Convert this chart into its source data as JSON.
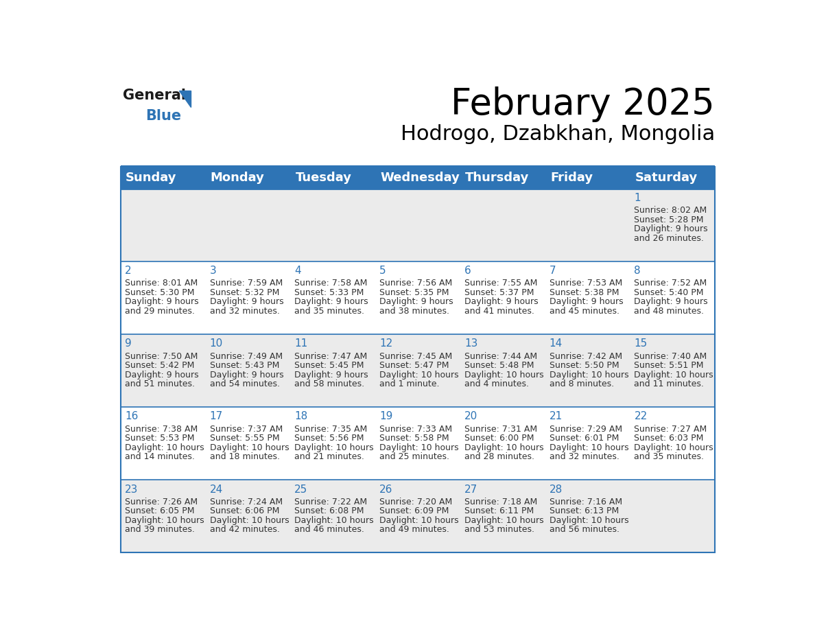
{
  "title": "February 2025",
  "subtitle": "Hodrogo, Dzabkhan, Mongolia",
  "header_color": "#2E74B5",
  "header_text_color": "#FFFFFF",
  "row_bg_gray": "#EBEBEB",
  "row_bg_white": "#FFFFFF",
  "border_color": "#2E74B5",
  "day_number_color": "#2E74B5",
  "info_text_color": "#333333",
  "days_of_week": [
    "Sunday",
    "Monday",
    "Tuesday",
    "Wednesday",
    "Thursday",
    "Friday",
    "Saturday"
  ],
  "title_fontsize": 38,
  "subtitle_fontsize": 22,
  "day_header_fontsize": 13,
  "cell_day_fontsize": 11,
  "cell_info_fontsize": 9,
  "logo_general_color": "#1a1a1a",
  "logo_blue_color": "#2E74B5",
  "logo_triangle_color": "#2E74B5",
  "calendar": [
    [
      {
        "day": "",
        "info": ""
      },
      {
        "day": "",
        "info": ""
      },
      {
        "day": "",
        "info": ""
      },
      {
        "day": "",
        "info": ""
      },
      {
        "day": "",
        "info": ""
      },
      {
        "day": "",
        "info": ""
      },
      {
        "day": "1",
        "info": "Sunrise: 8:02 AM\nSunset: 5:28 PM\nDaylight: 9 hours\nand 26 minutes."
      }
    ],
    [
      {
        "day": "2",
        "info": "Sunrise: 8:01 AM\nSunset: 5:30 PM\nDaylight: 9 hours\nand 29 minutes."
      },
      {
        "day": "3",
        "info": "Sunrise: 7:59 AM\nSunset: 5:32 PM\nDaylight: 9 hours\nand 32 minutes."
      },
      {
        "day": "4",
        "info": "Sunrise: 7:58 AM\nSunset: 5:33 PM\nDaylight: 9 hours\nand 35 minutes."
      },
      {
        "day": "5",
        "info": "Sunrise: 7:56 AM\nSunset: 5:35 PM\nDaylight: 9 hours\nand 38 minutes."
      },
      {
        "day": "6",
        "info": "Sunrise: 7:55 AM\nSunset: 5:37 PM\nDaylight: 9 hours\nand 41 minutes."
      },
      {
        "day": "7",
        "info": "Sunrise: 7:53 AM\nSunset: 5:38 PM\nDaylight: 9 hours\nand 45 minutes."
      },
      {
        "day": "8",
        "info": "Sunrise: 7:52 AM\nSunset: 5:40 PM\nDaylight: 9 hours\nand 48 minutes."
      }
    ],
    [
      {
        "day": "9",
        "info": "Sunrise: 7:50 AM\nSunset: 5:42 PM\nDaylight: 9 hours\nand 51 minutes."
      },
      {
        "day": "10",
        "info": "Sunrise: 7:49 AM\nSunset: 5:43 PM\nDaylight: 9 hours\nand 54 minutes."
      },
      {
        "day": "11",
        "info": "Sunrise: 7:47 AM\nSunset: 5:45 PM\nDaylight: 9 hours\nand 58 minutes."
      },
      {
        "day": "12",
        "info": "Sunrise: 7:45 AM\nSunset: 5:47 PM\nDaylight: 10 hours\nand 1 minute."
      },
      {
        "day": "13",
        "info": "Sunrise: 7:44 AM\nSunset: 5:48 PM\nDaylight: 10 hours\nand 4 minutes."
      },
      {
        "day": "14",
        "info": "Sunrise: 7:42 AM\nSunset: 5:50 PM\nDaylight: 10 hours\nand 8 minutes."
      },
      {
        "day": "15",
        "info": "Sunrise: 7:40 AM\nSunset: 5:51 PM\nDaylight: 10 hours\nand 11 minutes."
      }
    ],
    [
      {
        "day": "16",
        "info": "Sunrise: 7:38 AM\nSunset: 5:53 PM\nDaylight: 10 hours\nand 14 minutes."
      },
      {
        "day": "17",
        "info": "Sunrise: 7:37 AM\nSunset: 5:55 PM\nDaylight: 10 hours\nand 18 minutes."
      },
      {
        "day": "18",
        "info": "Sunrise: 7:35 AM\nSunset: 5:56 PM\nDaylight: 10 hours\nand 21 minutes."
      },
      {
        "day": "19",
        "info": "Sunrise: 7:33 AM\nSunset: 5:58 PM\nDaylight: 10 hours\nand 25 minutes."
      },
      {
        "day": "20",
        "info": "Sunrise: 7:31 AM\nSunset: 6:00 PM\nDaylight: 10 hours\nand 28 minutes."
      },
      {
        "day": "21",
        "info": "Sunrise: 7:29 AM\nSunset: 6:01 PM\nDaylight: 10 hours\nand 32 minutes."
      },
      {
        "day": "22",
        "info": "Sunrise: 7:27 AM\nSunset: 6:03 PM\nDaylight: 10 hours\nand 35 minutes."
      }
    ],
    [
      {
        "day": "23",
        "info": "Sunrise: 7:26 AM\nSunset: 6:05 PM\nDaylight: 10 hours\nand 39 minutes."
      },
      {
        "day": "24",
        "info": "Sunrise: 7:24 AM\nSunset: 6:06 PM\nDaylight: 10 hours\nand 42 minutes."
      },
      {
        "day": "25",
        "info": "Sunrise: 7:22 AM\nSunset: 6:08 PM\nDaylight: 10 hours\nand 46 minutes."
      },
      {
        "day": "26",
        "info": "Sunrise: 7:20 AM\nSunset: 6:09 PM\nDaylight: 10 hours\nand 49 minutes."
      },
      {
        "day": "27",
        "info": "Sunrise: 7:18 AM\nSunset: 6:11 PM\nDaylight: 10 hours\nand 53 minutes."
      },
      {
        "day": "28",
        "info": "Sunrise: 7:16 AM\nSunset: 6:13 PM\nDaylight: 10 hours\nand 56 minutes."
      },
      {
        "day": "",
        "info": ""
      }
    ]
  ]
}
